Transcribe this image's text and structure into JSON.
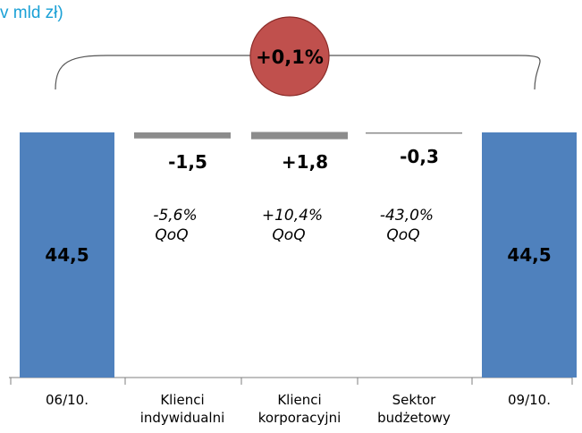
{
  "header": {
    "unit_title": "v mld zł)"
  },
  "colors": {
    "total_bar": "#4f81bd",
    "delta_bar": "#8c8c8c",
    "badge_fill": "#c0504d",
    "badge_stroke": "#8b2b28",
    "unit_title": "#1ba1d6"
  },
  "chart_data": {
    "type": "bar",
    "subtype": "waterfall",
    "categories": [
      "06/10.",
      "Klienci indywidualni",
      "Klienci korporacyjni",
      "Sektor budżetowy",
      "09/10."
    ],
    "tick_labels": [
      [
        "06/10."
      ],
      [
        "Klienci",
        "indywidualni"
      ],
      [
        "Klienci",
        "korporacyjni"
      ],
      [
        "Sektor",
        "budżetowy"
      ],
      [
        "09/10."
      ]
    ],
    "values": [
      44.5,
      -1.5,
      1.8,
      -0.3,
      44.5
    ],
    "bar_kinds": [
      "total",
      "delta",
      "delta",
      "delta",
      "total"
    ],
    "value_labels": [
      "44,5",
      "-1,5",
      "+1,8",
      "-0,3",
      "44,5"
    ],
    "qoq_labels": [
      "",
      "-5,6%",
      "+10,4%",
      "-43,0%",
      ""
    ],
    "qoq_suffix": "QoQ",
    "total_change_label": "+0,1%",
    "ylim": [
      0,
      44.5
    ]
  }
}
